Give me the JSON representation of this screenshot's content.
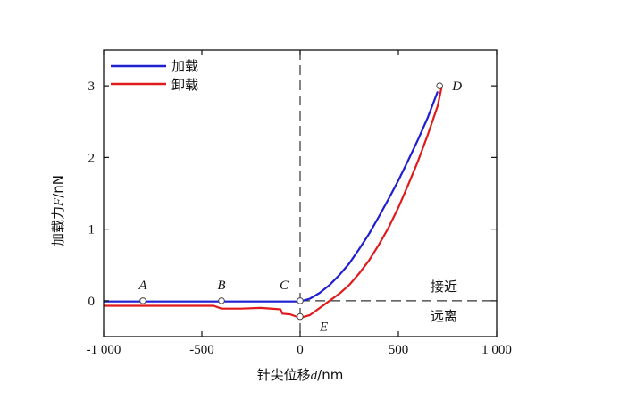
{
  "chart_data": {
    "type": "line",
    "xlabel_text": "针尖位移",
    "xlabel_var": "d",
    "xlabel_unit": "/nm",
    "ylabel_text": "加载力",
    "ylabel_var": "F",
    "ylabel_unit": "/nN",
    "xlim": [
      -1000,
      1000
    ],
    "ylim": [
      -0.5,
      3.5
    ],
    "xticks": [
      -1000,
      -500,
      0,
      500,
      1000
    ],
    "xtick_labels": [
      "-1 000",
      "-500",
      "0",
      "500",
      "1 000"
    ],
    "yticks": [
      0,
      1,
      2,
      3
    ],
    "ytick_labels": [
      "0",
      "1",
      "2",
      "3"
    ],
    "legend_position": "top-left",
    "colors": {
      "loading": "#1f1fd1",
      "unloading": "#e01b1b",
      "axis": "#111111"
    },
    "series": [
      {
        "name": "加载",
        "color": "#1f1fd1",
        "x": [
          -1000,
          -800,
          -600,
          -400,
          -200,
          -100,
          -50,
          0,
          50,
          100,
          150,
          200,
          250,
          300,
          350,
          400,
          450,
          500,
          550,
          600,
          650,
          700
        ],
        "y": [
          -0.01,
          -0.01,
          -0.01,
          -0.01,
          -0.01,
          -0.01,
          -0.01,
          -0.01,
          0.03,
          0.11,
          0.22,
          0.36,
          0.52,
          0.72,
          0.93,
          1.17,
          1.42,
          1.68,
          1.96,
          2.25,
          2.56,
          2.92
        ]
      },
      {
        "name": "卸载",
        "color": "#e01b1b",
        "x": [
          -1000,
          -800,
          -600,
          -440,
          -400,
          -300,
          -200,
          -100,
          -90,
          -50,
          -20,
          0,
          50,
          80,
          120,
          200,
          250,
          300,
          350,
          400,
          450,
          500,
          550,
          600,
          650,
          700,
          720
        ],
        "y": [
          -0.07,
          -0.07,
          -0.07,
          -0.07,
          -0.11,
          -0.11,
          -0.1,
          -0.12,
          -0.18,
          -0.19,
          -0.22,
          -0.24,
          -0.2,
          -0.14,
          -0.06,
          0.1,
          0.22,
          0.38,
          0.56,
          0.78,
          1.02,
          1.3,
          1.62,
          1.95,
          2.32,
          2.72,
          2.98
        ]
      }
    ],
    "reference_lines": {
      "vertical_x": 0,
      "horizontal_y": 0
    },
    "points": [
      {
        "label": "A",
        "x": -800,
        "y": 0.0
      },
      {
        "label": "B",
        "x": -400,
        "y": 0.0
      },
      {
        "label": "C",
        "x": 0,
        "y": 0.0
      },
      {
        "label": "D",
        "x": 710,
        "y": 3.0
      },
      {
        "label": "E",
        "x": 0,
        "y": -0.22
      }
    ],
    "region_labels": {
      "approach": "接近",
      "retract": "远离"
    }
  }
}
